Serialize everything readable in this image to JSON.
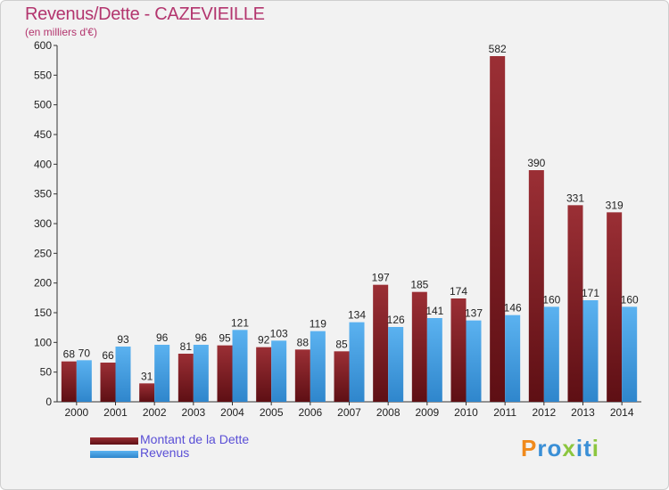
{
  "title": "Revenus/Dette - CAZEVIEILLE",
  "subtitle": "(en milliers d'€)",
  "legend": {
    "debt_label": "Montant de la Dette",
    "revenue_label": "Revenus"
  },
  "logo": {
    "text": "Proxiti",
    "letters": [
      {
        "ch": "P",
        "color": "#f08a1c"
      },
      {
        "ch": "r",
        "color": "#3a8fd6"
      },
      {
        "ch": "o",
        "color": "#3a8fd6"
      },
      {
        "ch": "x",
        "color": "#8cc63f"
      },
      {
        "ch": "i",
        "color": "#3a8fd6"
      },
      {
        "ch": "t",
        "color": "#3a8fd6"
      },
      {
        "ch": "i",
        "color": "#8cc63f"
      }
    ]
  },
  "colors": {
    "debt": "#7a1e22",
    "debt_light": "#a23a40",
    "revenue": "#3f9de4",
    "revenue_light": "#6bb8f0",
    "title": "#b3356e"
  },
  "chart_data": {
    "type": "bar",
    "title": "Revenus/Dette - CAZEVIEILLE",
    "ylabel": "(en milliers d'€)",
    "xlabel": "",
    "ylim": [
      0,
      600
    ],
    "yticks": [
      0,
      50,
      100,
      150,
      200,
      250,
      300,
      350,
      400,
      450,
      500,
      550,
      600
    ],
    "grid": false,
    "legend_position": "bottom-left",
    "categories": [
      "2000",
      "2001",
      "2002",
      "2003",
      "2004",
      "2005",
      "2006",
      "2007",
      "2008",
      "2009",
      "2010",
      "2011",
      "2012",
      "2013",
      "2014"
    ],
    "series": [
      {
        "name": "Montant de la Dette",
        "values": [
          68,
          66,
          31,
          81,
          95,
          92,
          88,
          85,
          197,
          185,
          174,
          582,
          390,
          331,
          319
        ]
      },
      {
        "name": "Revenus",
        "values": [
          70,
          93,
          96,
          96,
          121,
          103,
          119,
          134,
          126,
          141,
          137,
          146,
          160,
          171,
          160
        ]
      }
    ]
  }
}
